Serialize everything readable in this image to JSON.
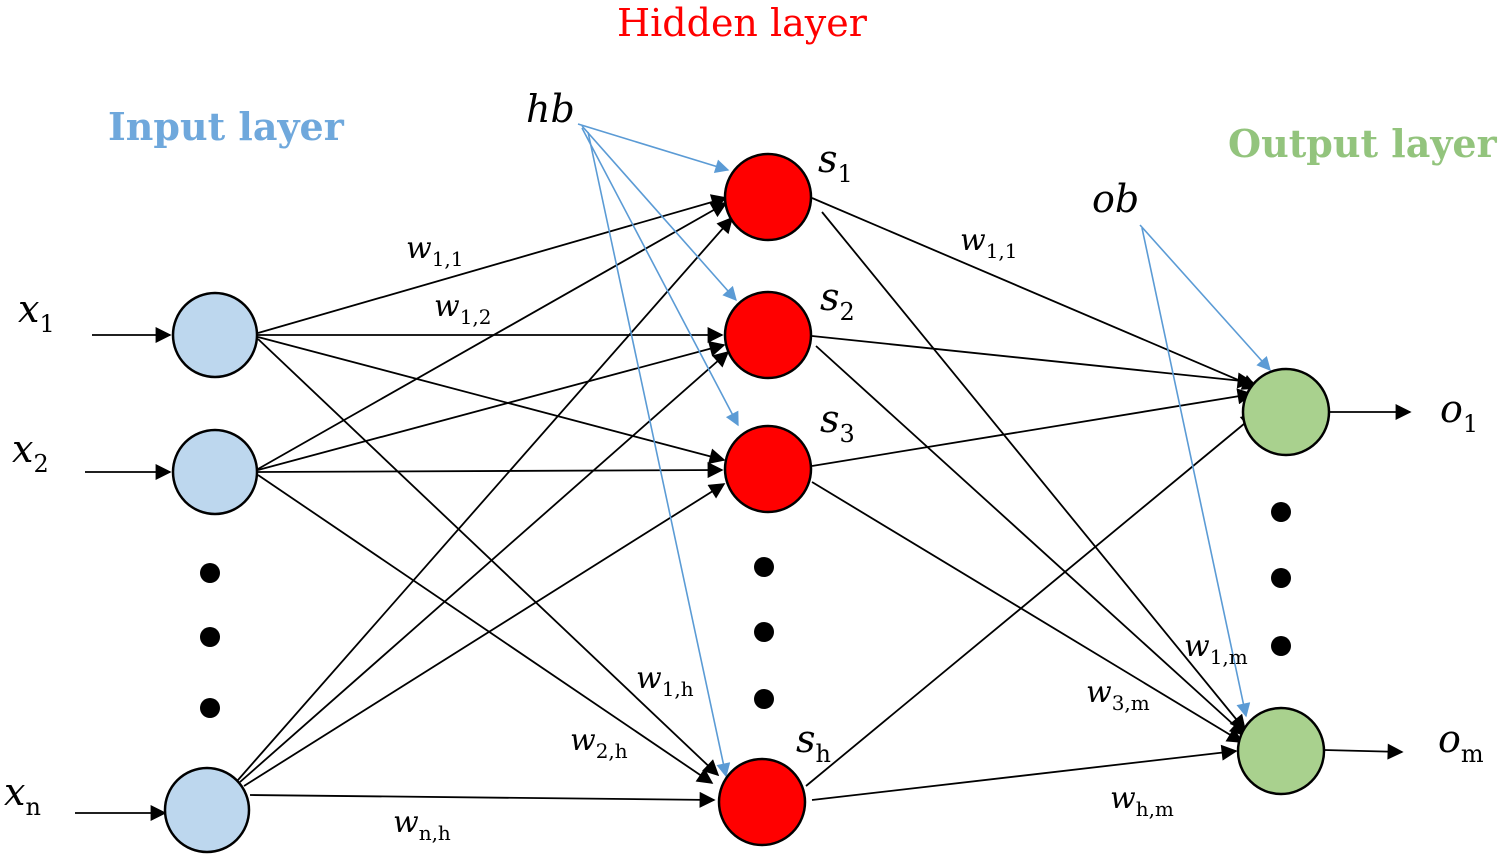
{
  "colors": {
    "input_node": "#bdd7ee",
    "hidden_node": "#ff0000",
    "output_node": "#a9d18e",
    "input_title": "#6fa8dc",
    "hidden_title": "#ff0000",
    "output_title": "#93c47d",
    "bias_arrow": "#5b9bd5",
    "edge": "#000000"
  },
  "layers": {
    "input": {
      "title": "Input layer"
    },
    "hidden": {
      "title": "Hidden layer"
    },
    "output": {
      "title": "Output layer"
    }
  },
  "inputs": [
    {
      "var": "x",
      "sub": "1"
    },
    {
      "var": "x",
      "sub": "2"
    },
    {
      "var": "x",
      "sub": "n"
    }
  ],
  "hidden_nodes": [
    {
      "var": "s",
      "sub": "1"
    },
    {
      "var": "s",
      "sub": "2"
    },
    {
      "var": "s",
      "sub": "3"
    },
    {
      "var": "s",
      "sub": "h"
    }
  ],
  "outputs": [
    {
      "var": "o",
      "sub": "1"
    },
    {
      "var": "o",
      "sub": "m"
    }
  ],
  "biases": {
    "hidden": "hb",
    "output": "ob"
  },
  "weights": {
    "w11_in": {
      "var": "w",
      "sub": "1,1"
    },
    "w12_in": {
      "var": "w",
      "sub": "1,2"
    },
    "w1h": {
      "var": "w",
      "sub": "1,h"
    },
    "w2h": {
      "var": "w",
      "sub": "2,h"
    },
    "wnh": {
      "var": "w",
      "sub": "n,h"
    },
    "w11_out": {
      "var": "w",
      "sub": "1,1"
    },
    "w1m": {
      "var": "w",
      "sub": "1,m"
    },
    "w3m": {
      "var": "w",
      "sub": "3,m"
    },
    "whm": {
      "var": "w",
      "sub": "h,m"
    }
  }
}
